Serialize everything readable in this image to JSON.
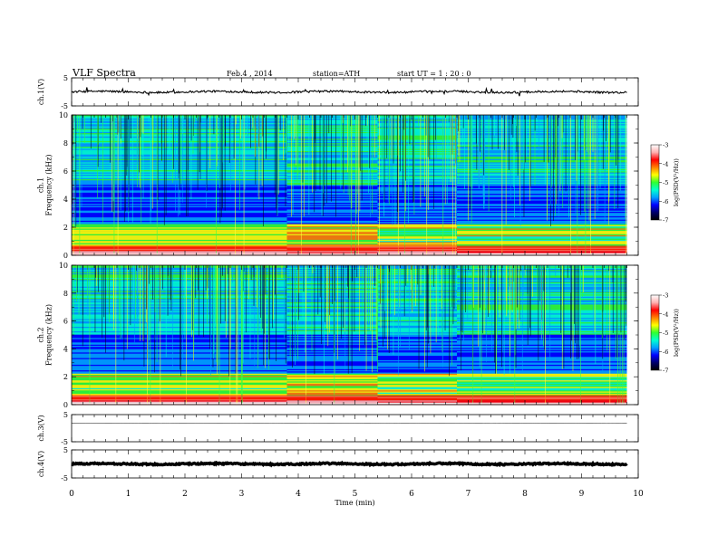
{
  "header": {
    "title": "VLF  Spectra",
    "date": "Feb.4  , 2014",
    "station": "station=ATH",
    "start": "start  UT  =   1 : 20 : 0"
  },
  "colors": {
    "colormap": [
      "#000000",
      "#00006a",
      "#0000ff",
      "#00a0ff",
      "#00ffd0",
      "#30ff30",
      "#ffff00",
      "#ff8000",
      "#ff0000",
      "#ffb0b0",
      "#ffffff"
    ]
  },
  "chart_data": [
    {
      "type": "line",
      "name_id": "ch1",
      "ylabel": "ch.1(V)",
      "ylim": [
        -5,
        5
      ],
      "yticks": [
        "5",
        "-5"
      ],
      "xlim": [
        0,
        10
      ],
      "level": 0.0,
      "amplitude": 0.35
    },
    {
      "type": "heatmap",
      "name_id": "spec1",
      "ylabel": "ch.1\nFrequency  (kHz)",
      "ylim": [
        0,
        10
      ],
      "yticks": [
        "0",
        "2",
        "4",
        "6",
        "8",
        "10"
      ],
      "xlim": [
        0,
        9.8
      ],
      "segments_min": [
        0,
        3.8,
        5.4,
        6.8,
        9.8
      ],
      "colorbar": {
        "label": "log(PSD(V²/Hz))",
        "ticks": [
          "-3",
          "-4",
          "-5",
          "-6",
          "-7"
        ],
        "range": [
          -7,
          -3
        ]
      }
    },
    {
      "type": "heatmap",
      "name_id": "spec2",
      "ylabel": "ch.2\nFrequency  (kHz)",
      "ylim": [
        0,
        10
      ],
      "yticks": [
        "0",
        "2",
        "4",
        "6",
        "8",
        "10"
      ],
      "xlim": [
        0,
        9.8
      ],
      "segments_min": [
        0,
        3.8,
        5.4,
        6.8,
        9.8
      ],
      "colorbar": {
        "label": "log(PSD(V²/Hz))",
        "ticks": [
          "-3",
          "-4",
          "-5",
          "-6",
          "-7"
        ],
        "range": [
          -7,
          -3
        ]
      }
    },
    {
      "type": "line",
      "name_id": "ch3",
      "ylabel": "ch.3(V)",
      "ylim": [
        -5,
        5
      ],
      "yticks": [
        "5",
        "-5"
      ],
      "xlim": [
        0,
        10
      ],
      "level": 1.8,
      "amplitude": 0.05
    },
    {
      "type": "line",
      "name_id": "ch4",
      "ylabel": "ch.4(V)",
      "ylim": [
        -5,
        5
      ],
      "yticks": [
        "5",
        "-5"
      ],
      "xlim": [
        0,
        10
      ],
      "level": 0.0,
      "amplitude": 0.25
    }
  ],
  "xaxis": {
    "label": "Time  (min)",
    "ticks": [
      "0",
      "1",
      "2",
      "3",
      "4",
      "5",
      "6",
      "7",
      "8",
      "9",
      "10"
    ],
    "range": [
      0,
      10
    ]
  }
}
